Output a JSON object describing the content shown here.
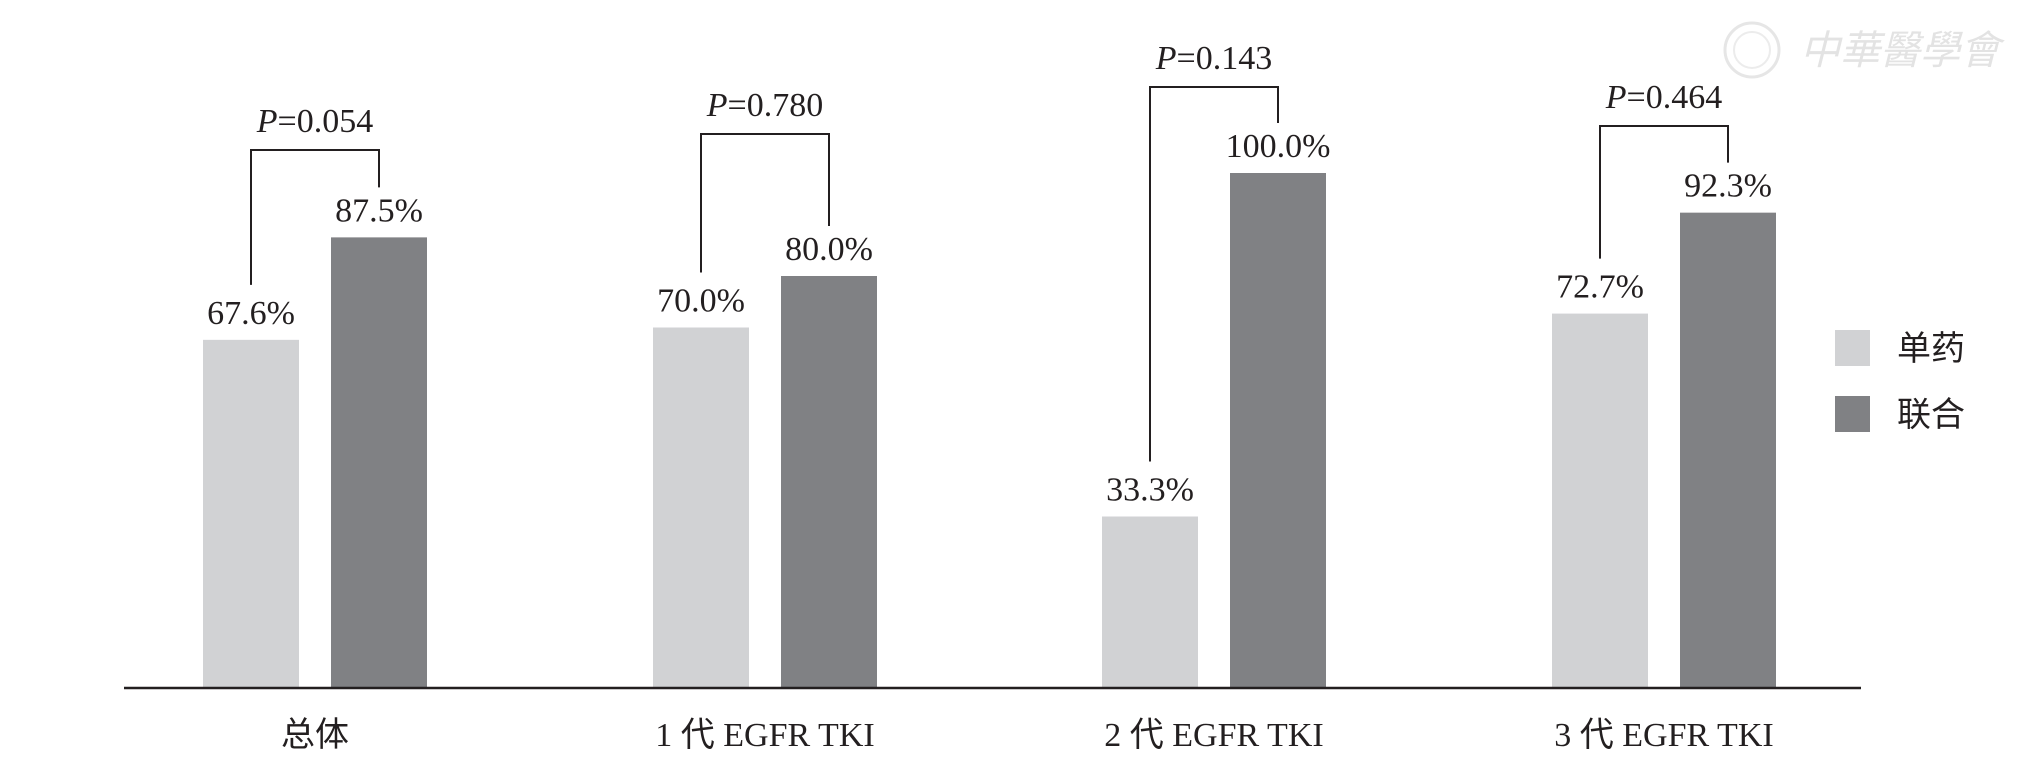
{
  "chart_data": {
    "type": "bar",
    "title": "",
    "xlabel": "",
    "ylabel": "",
    "ylim": [
      0,
      100
    ],
    "grid": false,
    "legend_position": "right",
    "categories": [
      "总体",
      "1 代 EGFR   TKI",
      "2 代 EGFR   TKI",
      "3 代 EGFR   TKI"
    ],
    "series": [
      {
        "name": "单药",
        "color": "#d1d2d4",
        "values": [
          67.6,
          70.0,
          33.3,
          72.7
        ],
        "labels": [
          "67.6%",
          "70.0%",
          "33.3%",
          "72.7%"
        ]
      },
      {
        "name": "联合",
        "color": "#808184",
        "values": [
          87.5,
          80.0,
          100.0,
          92.3
        ],
        "labels": [
          "87.5%",
          "80.0%",
          "100.0%",
          "92.3%"
        ]
      }
    ],
    "p_values": [
      {
        "prefix": "P",
        "value": "=0.054"
      },
      {
        "prefix": "P",
        "value": "=0.780"
      },
      {
        "prefix": "P",
        "value": "=0.143"
      },
      {
        "prefix": "P",
        "value": "=0.464"
      }
    ]
  },
  "watermark": "中華醫學會"
}
